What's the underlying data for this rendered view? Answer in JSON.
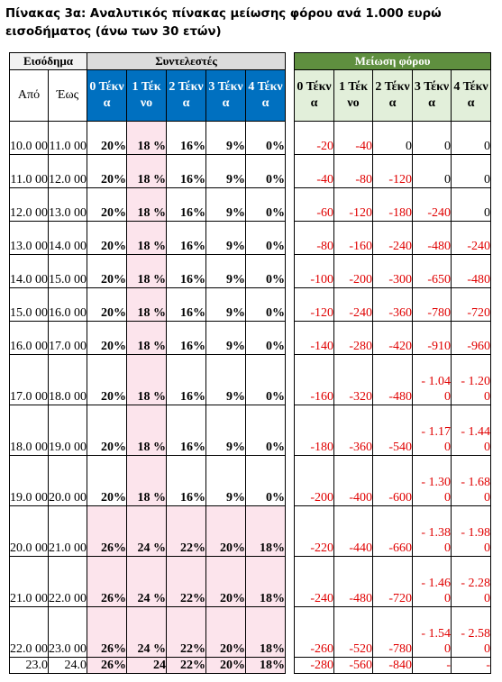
{
  "title": "Πίνακας 3α: Αναλυτικός πίνακας μείωσης φόρου ανά 1.000 ευρώ εισοδήματος (άνω των 30 ετών)",
  "headers": {
    "income": "Εισόδημα",
    "rates": "Συντελεστές",
    "reduction": "Μείωση φόρου",
    "from": "Από",
    "to": "Έως",
    "rate_cols": [
      "0 Τέκν α",
      "1 Τέκ νο",
      "2 Τέκν α",
      "3 Τέκν α",
      "4 Τέκν α"
    ],
    "red_cols": [
      "0 Τέκν α",
      "1 Τέκ νο",
      "2 Τέκν α",
      "3 Τέκν α",
      "4 Τέκν α"
    ]
  },
  "rows": [
    {
      "from": "10.0 00",
      "to": "11.0 00",
      "rates": [
        "20%",
        "18 %",
        "16%",
        "9%",
        "0%"
      ],
      "red": [
        "-20",
        "-40",
        "0",
        "0",
        "0"
      ]
    },
    {
      "from": "11.0 00",
      "to": "12.0 00",
      "rates": [
        "20%",
        "18 %",
        "16%",
        "9%",
        "0%"
      ],
      "red": [
        "-40",
        "-80",
        "-120",
        "0",
        "0"
      ]
    },
    {
      "from": "12.0 00",
      "to": "13.0 00",
      "rates": [
        "20%",
        "18 %",
        "16%",
        "9%",
        "0%"
      ],
      "red": [
        "-60",
        "-120",
        "-180",
        "-240",
        "0"
      ]
    },
    {
      "from": "13.0 00",
      "to": "14.0 00",
      "rates": [
        "20%",
        "18 %",
        "16%",
        "9%",
        "0%"
      ],
      "red": [
        "-80",
        "-160",
        "-240",
        "-480",
        "-240"
      ]
    },
    {
      "from": "14.0 00",
      "to": "15.0 00",
      "rates": [
        "20%",
        "18 %",
        "16%",
        "9%",
        "0%"
      ],
      "red": [
        "-100",
        "-200",
        "-300",
        "-650",
        "-480"
      ]
    },
    {
      "from": "15.0 00",
      "to": "16.0 00",
      "rates": [
        "20%",
        "18 %",
        "16%",
        "9%",
        "0%"
      ],
      "red": [
        "-120",
        "-240",
        "-360",
        "-780",
        "-720"
      ]
    },
    {
      "from": "16.0 00",
      "to": "17.0 00",
      "rates": [
        "20%",
        "18 %",
        "16%",
        "9%",
        "0%"
      ],
      "red": [
        "-140",
        "-280",
        "-420",
        "-910",
        "-960"
      ]
    },
    {
      "from": "17.0 00",
      "to": "18.0 00",
      "rates": [
        "20%",
        "18 %",
        "16%",
        "9%",
        "0%"
      ],
      "red": [
        "-160",
        "-320",
        "-480",
        "- 1.04 0",
        "- 1.20 0"
      ]
    },
    {
      "from": "18.0 00",
      "to": "19.0 00",
      "rates": [
        "20%",
        "18 %",
        "16%",
        "9%",
        "0%"
      ],
      "red": [
        "-180",
        "-360",
        "-540",
        "- 1.17 0",
        "- 1.44 0"
      ]
    },
    {
      "from": "19.0 00",
      "to": "20.0 00",
      "rates": [
        "20%",
        "18 %",
        "16%",
        "9%",
        "0%"
      ],
      "red": [
        "-200",
        "-400",
        "-600",
        "- 1.30 0",
        "- 1.68 0"
      ]
    },
    {
      "from": "20.0 00",
      "to": "21.0 00",
      "rates": [
        "26%",
        "24 %",
        "22%",
        "20%",
        "18%"
      ],
      "red": [
        "-220",
        "-440",
        "-660",
        "- 1.38 0",
        "- 1.98 0"
      ]
    },
    {
      "from": "21.0 00",
      "to": "22.0 00",
      "rates": [
        "26%",
        "24 %",
        "22%",
        "20%",
        "18%"
      ],
      "red": [
        "-240",
        "-480",
        "-720",
        "- 1.46 0",
        "- 2.28 0"
      ]
    },
    {
      "from": "22.0 00",
      "to": "23.0 00",
      "rates": [
        "26%",
        "24 %",
        "22%",
        "20%",
        "18%"
      ],
      "red": [
        "-260",
        "-520",
        "-780",
        "- 1.54 0",
        "- 2.58 0"
      ]
    },
    {
      "from": "23.0",
      "to": "24.0",
      "rates": [
        "26%",
        "24",
        "22%",
        "20%",
        "18%"
      ],
      "red": [
        "-280",
        "-560",
        "-840",
        "-",
        "-"
      ]
    }
  ]
}
